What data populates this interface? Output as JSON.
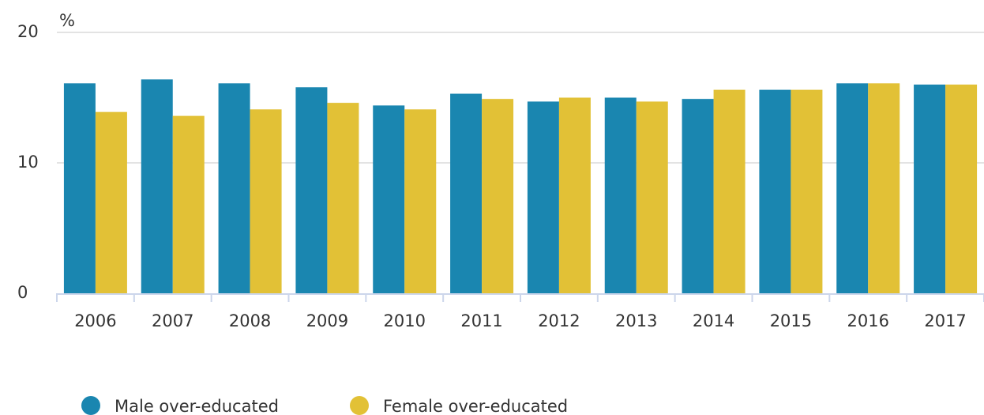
{
  "chart_data": {
    "type": "bar",
    "y_label": "%",
    "categories": [
      "2006",
      "2007",
      "2008",
      "2009",
      "2010",
      "2011",
      "2012",
      "2013",
      "2014",
      "2015",
      "2016",
      "2017"
    ],
    "series": [
      {
        "name": "Male over-educated",
        "color": "#1a86b0",
        "values": [
          16.1,
          16.4,
          16.1,
          15.8,
          14.4,
          15.3,
          14.7,
          15.0,
          14.9,
          15.6,
          16.1,
          16.0
        ]
      },
      {
        "name": "Female over-educated",
        "color": "#e2c136",
        "values": [
          13.9,
          13.6,
          14.1,
          14.6,
          14.1,
          14.9,
          15.0,
          14.7,
          15.6,
          15.6,
          16.1,
          16.0
        ]
      }
    ],
    "ylim": [
      0,
      20
    ],
    "yticks": [
      0,
      10,
      20
    ],
    "grid": true
  }
}
